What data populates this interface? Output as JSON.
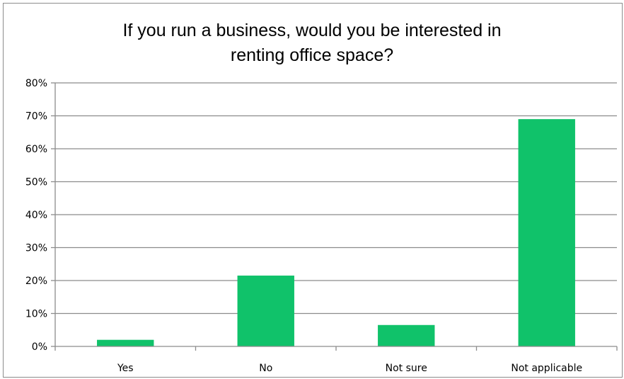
{
  "chart_data": {
    "type": "bar",
    "title_lines": [
      "If you run a business, would you be interested in",
      "renting office space?"
    ],
    "categories": [
      "Yes",
      "No",
      "Not sure",
      "Not applicable"
    ],
    "values": [
      0.02,
      0.215,
      0.065,
      0.69
    ],
    "ylim": [
      0,
      0.8
    ],
    "y_ticks": [
      "0%",
      "10%",
      "20%",
      "30%",
      "40%",
      "50%",
      "60%",
      "70%",
      "80%"
    ],
    "grid": true,
    "legend": "none",
    "bar_color": "#10c26a",
    "axis_color": "#8c8c8c"
  }
}
